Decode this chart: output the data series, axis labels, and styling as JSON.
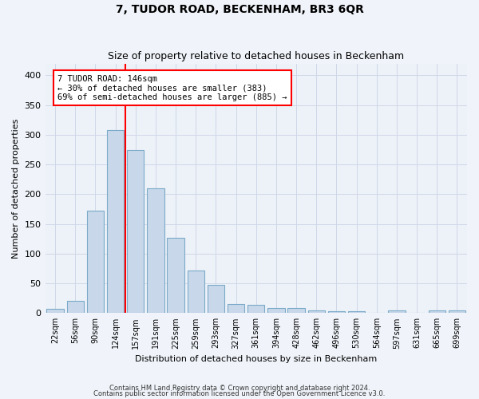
{
  "title": "7, TUDOR ROAD, BECKENHAM, BR3 6QR",
  "subtitle": "Size of property relative to detached houses in Beckenham",
  "xlabel": "Distribution of detached houses by size in Beckenham",
  "ylabel": "Number of detached properties",
  "bar_color": "#c8d8ea",
  "bar_edge_color": "#7aaac8",
  "grid_color": "#d0d8e8",
  "bg_color": "#edf1f8",
  "fig_color": "#f0f4fa",
  "categories": [
    "22sqm",
    "56sqm",
    "90sqm",
    "124sqm",
    "157sqm",
    "191sqm",
    "225sqm",
    "259sqm",
    "293sqm",
    "327sqm",
    "361sqm",
    "394sqm",
    "428sqm",
    "462sqm",
    "496sqm",
    "530sqm",
    "564sqm",
    "597sqm",
    "631sqm",
    "665sqm",
    "699sqm"
  ],
  "values": [
    7,
    21,
    172,
    308,
    275,
    210,
    127,
    72,
    48,
    15,
    14,
    9,
    8,
    5,
    3,
    3,
    0,
    4,
    0,
    5,
    4
  ],
  "annotation_text_line1": "7 TUDOR ROAD: 146sqm",
  "annotation_text_line2": "← 30% of detached houses are smaller (383)",
  "annotation_text_line3": "69% of semi-detached houses are larger (885) →",
  "footnote1": "Contains HM Land Registry data © Crown copyright and database right 2024.",
  "footnote2": "Contains public sector information licensed under the Open Government Licence v3.0.",
  "vline_x": 3.5,
  "ylim": [
    0,
    420
  ],
  "yticks": [
    0,
    50,
    100,
    150,
    200,
    250,
    300,
    350,
    400
  ]
}
